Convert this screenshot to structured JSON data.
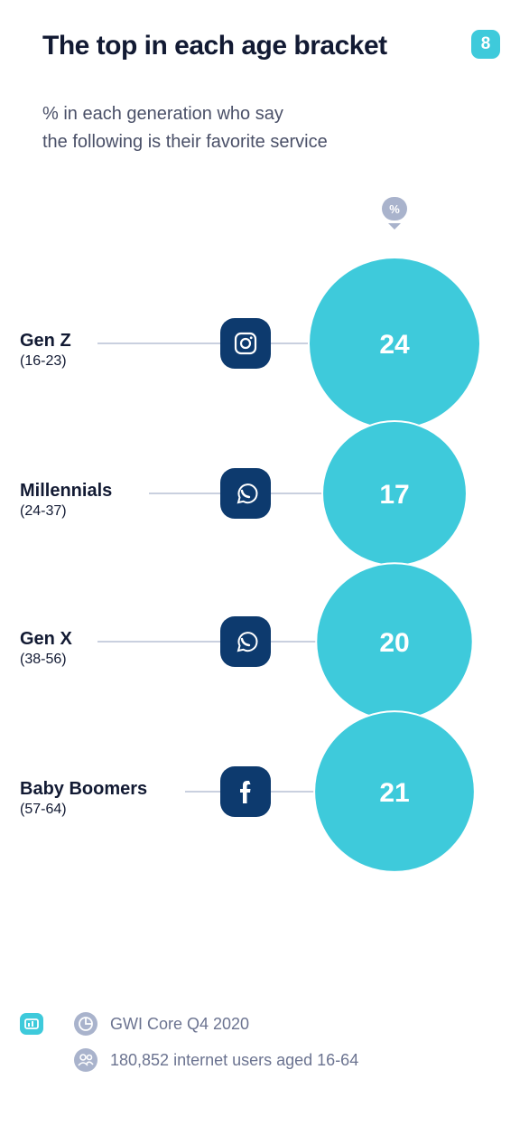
{
  "header": {
    "title": "The top in each age bracket",
    "page_number": "8",
    "subtitle_line1": "% in each generation who say",
    "subtitle_line2": "the following is their favorite service",
    "unit_badge": "%"
  },
  "colors": {
    "bubble": "#3ecadb",
    "icon_bg": "#0d3a6e",
    "connector": "#a9b3cc",
    "text_dark": "#121a33"
  },
  "chart_data": {
    "type": "bubble",
    "unit": "%",
    "rows": [
      {
        "generation": "Gen Z",
        "ages": "(16-23)",
        "service_icon": "instagram-icon",
        "value": 24
      },
      {
        "generation": "Millennials",
        "ages": "(24-37)",
        "service_icon": "whatsapp-icon",
        "value": 17
      },
      {
        "generation": "Gen X",
        "ages": "(38-56)",
        "service_icon": "whatsapp-icon",
        "value": 20
      },
      {
        "generation": "Baby Boomers",
        "ages": "(57-64)",
        "service_icon": "facebook-icon",
        "value": 21
      }
    ]
  },
  "footer": {
    "source": "GWI Core Q4 2020",
    "base": "180,852 internet users aged 16-64"
  }
}
